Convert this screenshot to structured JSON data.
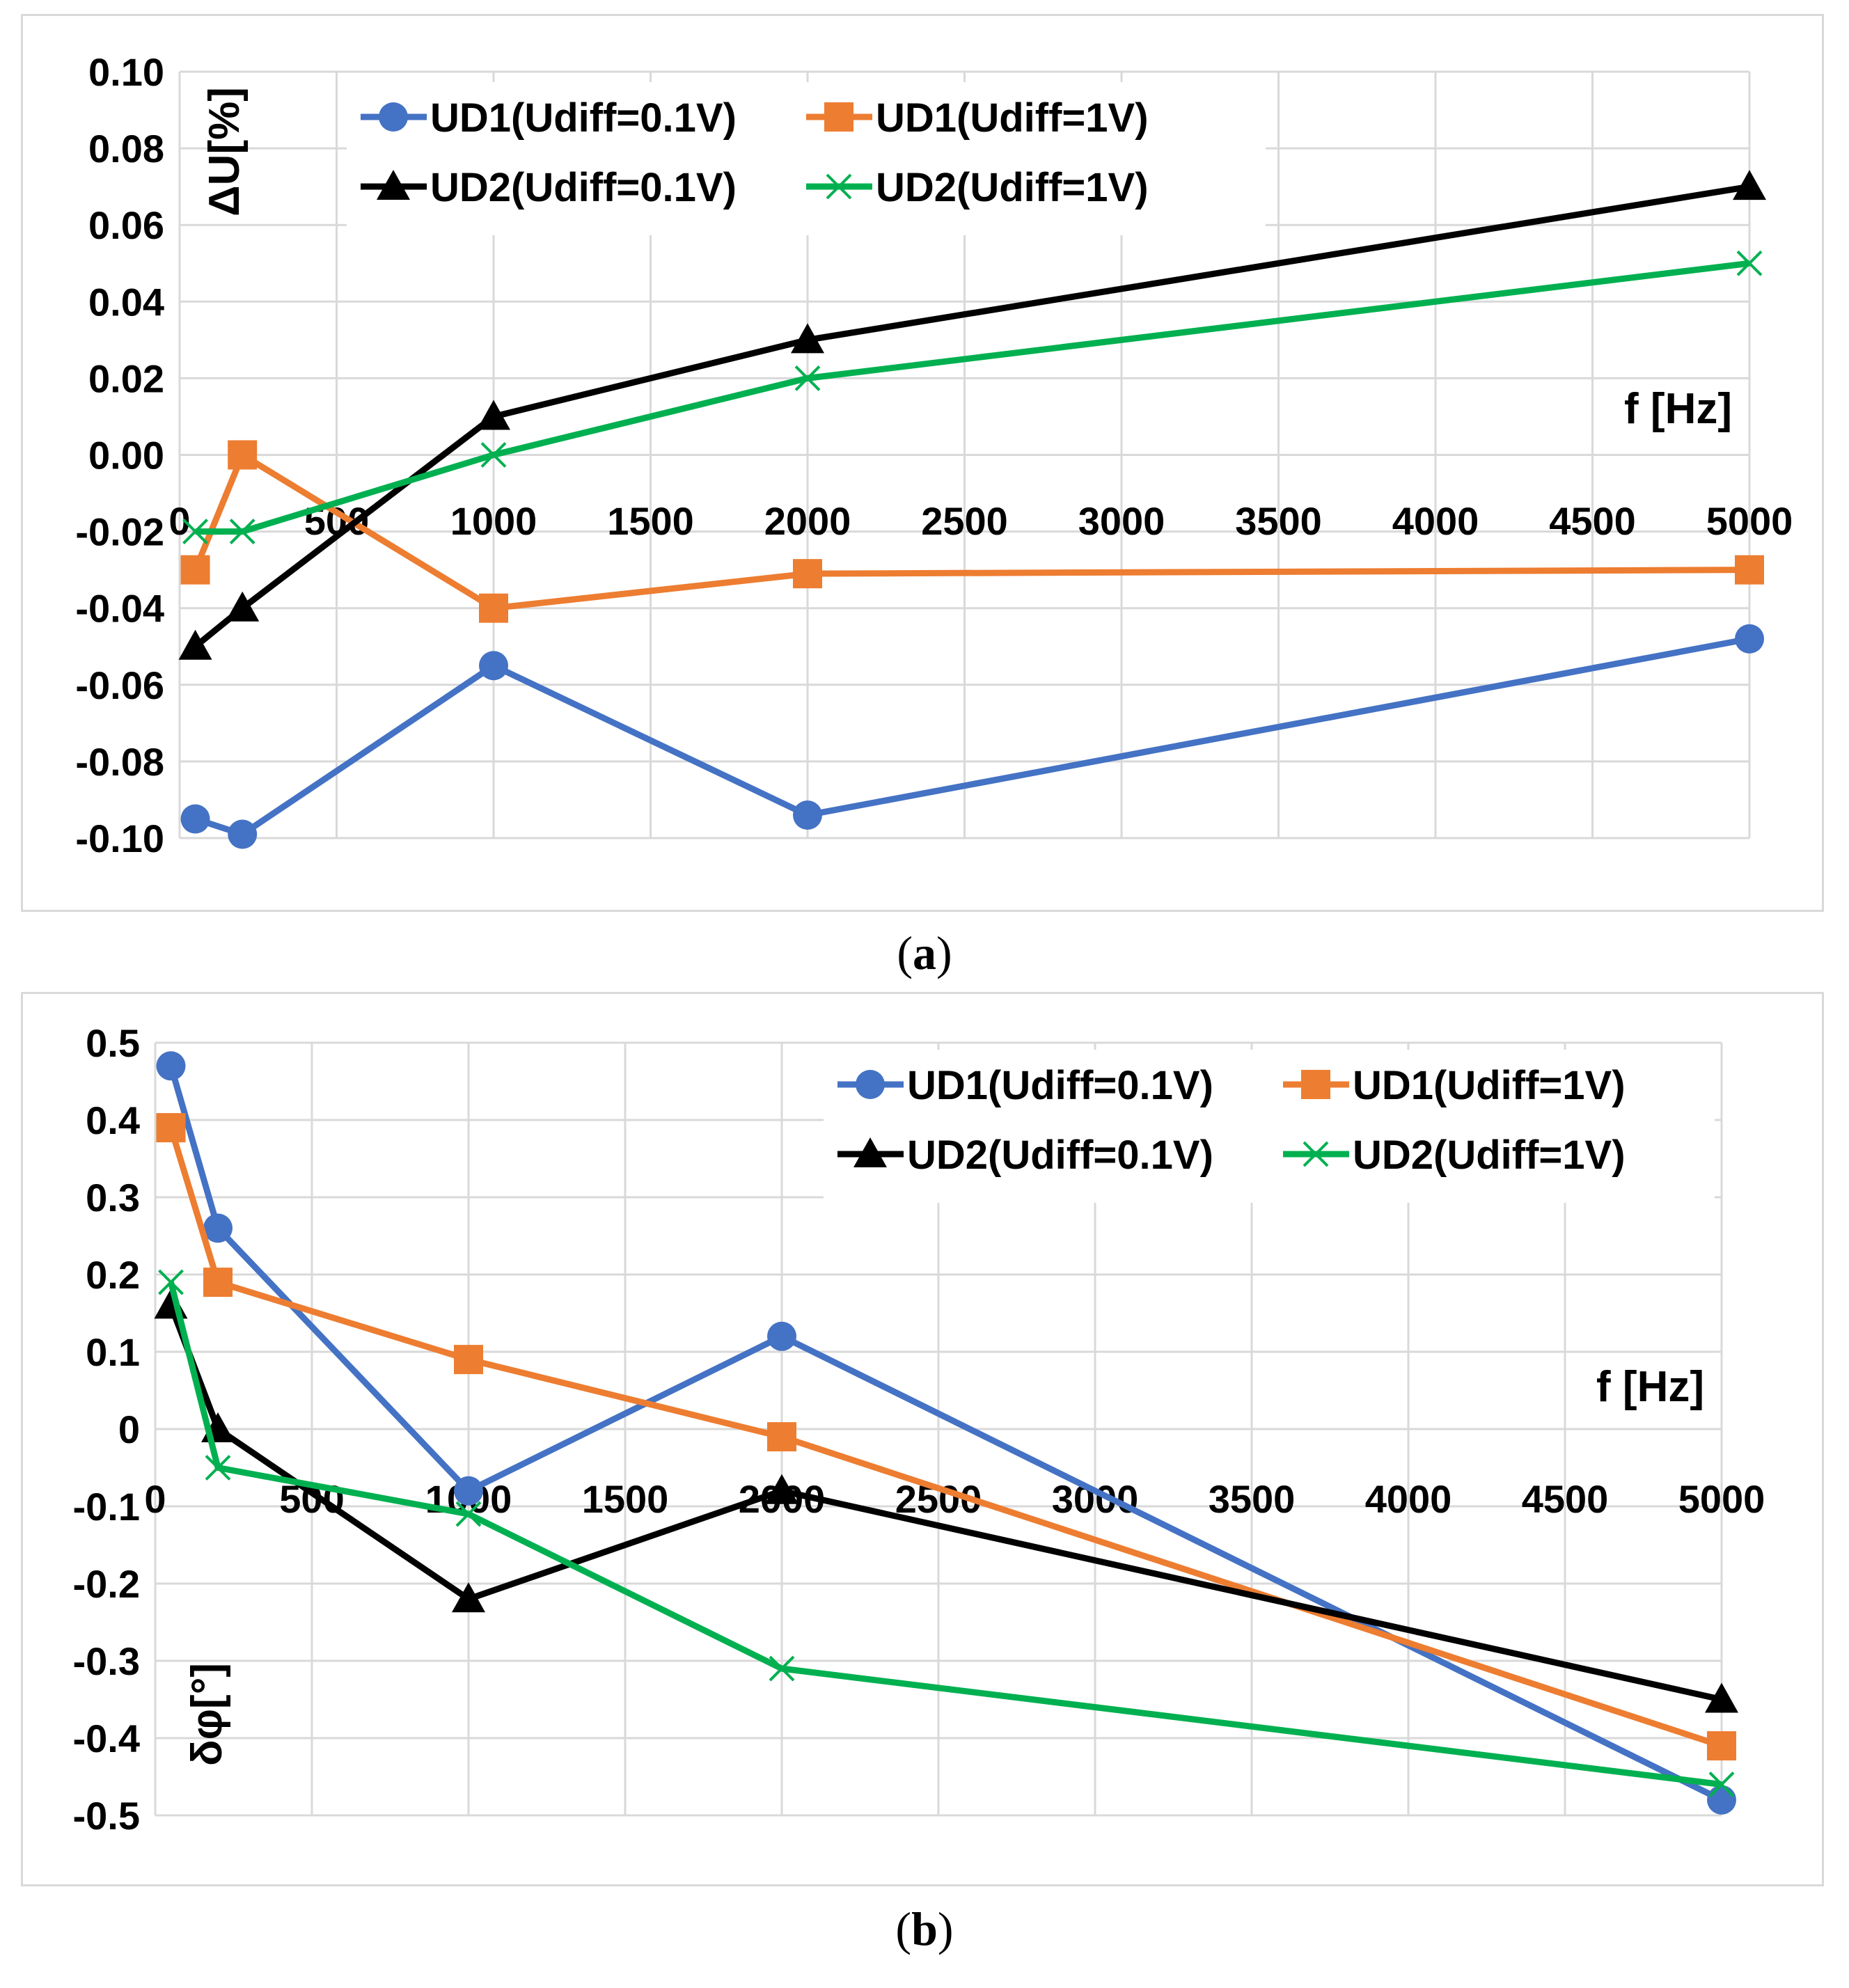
{
  "chart_data": [
    {
      "type": "line",
      "panel_label": "a",
      "ylabel": "ΔU[%]",
      "xlabel": "f [Hz]",
      "xlim": [
        0,
        5000
      ],
      "ylim": [
        -0.1,
        0.1
      ],
      "x_ticks": [
        0,
        500,
        1000,
        1500,
        2000,
        2500,
        3000,
        3500,
        4000,
        4500,
        5000
      ],
      "y_ticks": [
        0.1,
        0.08,
        0.06,
        0.04,
        0.02,
        0.0,
        -0.02,
        -0.04,
        -0.06,
        -0.08,
        -0.1
      ],
      "y_tick_labels": [
        "0.10",
        "0.08",
        "0.06",
        "0.04",
        "0.02",
        "0.00",
        "-0.02",
        "-0.04",
        "-0.06",
        "-0.08",
        "-0.10"
      ],
      "grid": true,
      "legend_position": "top",
      "series": [
        {
          "name": "UD1(Udiff=0.1V)",
          "color": "#4472C4",
          "marker": "circle",
          "x": [
            50,
            200,
            1000,
            2000,
            5000
          ],
          "y": [
            -0.095,
            -0.099,
            -0.055,
            -0.094,
            -0.048
          ]
        },
        {
          "name": "UD1(Udiff=1V)",
          "color": "#ED7D31",
          "marker": "square",
          "x": [
            50,
            200,
            1000,
            2000,
            5000
          ],
          "y": [
            -0.03,
            0.0,
            -0.04,
            -0.031,
            -0.03
          ]
        },
        {
          "name": "UD2(Udiff=0.1V)",
          "color": "#000000",
          "marker": "triangle",
          "x": [
            50,
            200,
            1000,
            2000,
            5000
          ],
          "y": [
            -0.05,
            -0.04,
            0.01,
            0.03,
            0.07
          ]
        },
        {
          "name": "UD2(Udiff=1V)",
          "color": "#00B050",
          "marker": "x",
          "x": [
            50,
            200,
            1000,
            2000,
            5000
          ],
          "y": [
            -0.02,
            -0.02,
            0.0,
            0.02,
            0.05
          ]
        }
      ]
    },
    {
      "type": "line",
      "panel_label": "b",
      "ylabel": "δφ[°]",
      "xlabel": "f [Hz]",
      "xlim": [
        0,
        5000
      ],
      "ylim": [
        -0.5,
        0.5
      ],
      "x_ticks": [
        0,
        500,
        1000,
        1500,
        2000,
        2500,
        3000,
        3500,
        4000,
        4500,
        5000
      ],
      "y_ticks": [
        0.5,
        0.4,
        0.3,
        0.2,
        0.1,
        0,
        -0.1,
        -0.2,
        -0.3,
        -0.4,
        -0.5
      ],
      "y_tick_labels": [
        "0.5",
        "0.4",
        "0.3",
        "0.2",
        "0.1",
        "0",
        "-0.1",
        "-0.2",
        "-0.3",
        "-0.4",
        "-0.5"
      ],
      "grid": true,
      "legend_position": "top-right",
      "series": [
        {
          "name": "UD1(Udiff=0.1V)",
          "color": "#4472C4",
          "marker": "circle",
          "x": [
            50,
            200,
            1000,
            2000,
            5000
          ],
          "y": [
            0.47,
            0.26,
            -0.08,
            0.12,
            -0.48
          ]
        },
        {
          "name": "UD1(Udiff=1V)",
          "color": "#ED7D31",
          "marker": "square",
          "x": [
            50,
            200,
            1000,
            2000,
            5000
          ],
          "y": [
            0.39,
            0.19,
            0.09,
            -0.01,
            -0.41
          ]
        },
        {
          "name": "UD2(Udiff=0.1V)",
          "color": "#000000",
          "marker": "triangle",
          "x": [
            50,
            200,
            1000,
            2000,
            5000
          ],
          "y": [
            0.16,
            0.0,
            -0.22,
            -0.08,
            -0.35
          ]
        },
        {
          "name": "UD2(Udiff=1V)",
          "color": "#00B050",
          "marker": "x",
          "x": [
            50,
            200,
            1000,
            2000,
            5000
          ],
          "y": [
            0.19,
            -0.05,
            -0.11,
            -0.31,
            -0.46
          ]
        }
      ]
    }
  ]
}
